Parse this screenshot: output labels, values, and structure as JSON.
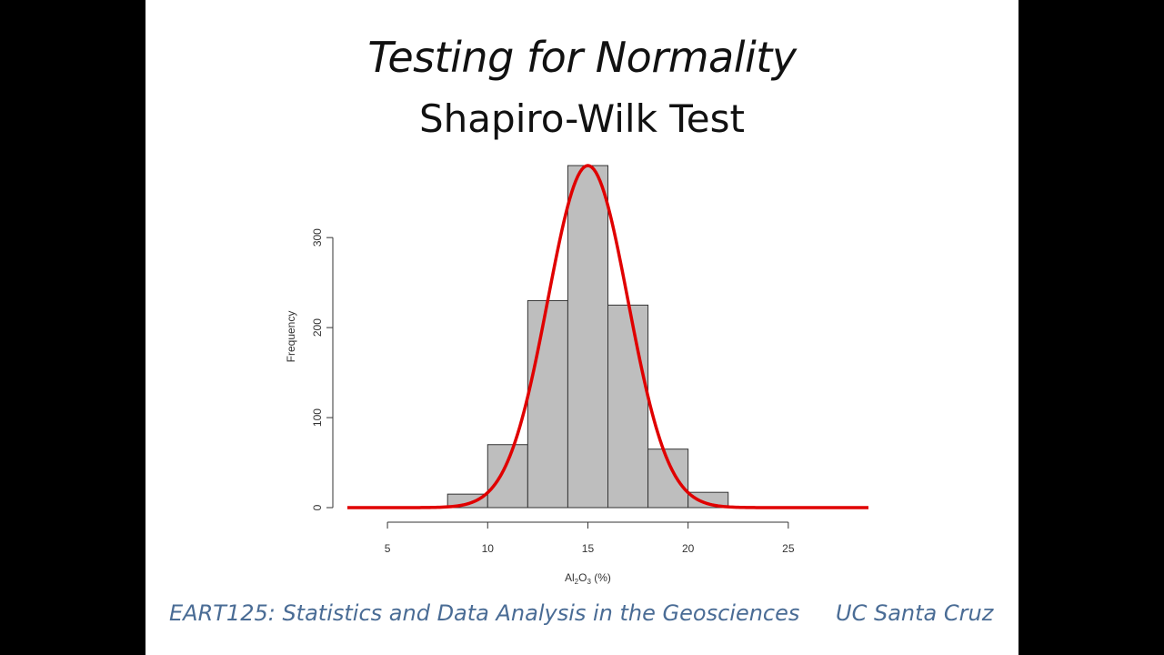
{
  "slide": {
    "title": "Testing for Normality",
    "subtitle": "Shapiro-Wilk Test",
    "footer_left": "EART125: Statistics and Data Analysis in the Geosciences",
    "footer_right": "UC Santa Cruz",
    "footer_color": "#4a6c95"
  },
  "chart_data": {
    "type": "bar",
    "bins": [
      {
        "x0": 8,
        "x1": 10,
        "value": 15
      },
      {
        "x0": 10,
        "x1": 12,
        "value": 70
      },
      {
        "x0": 12,
        "x1": 14,
        "value": 230
      },
      {
        "x0": 14,
        "x1": 16,
        "value": 380
      },
      {
        "x0": 16,
        "x1": 18,
        "value": 225
      },
      {
        "x0": 18,
        "x1": 20,
        "value": 65
      },
      {
        "x0": 20,
        "x1": 22,
        "value": 17
      }
    ],
    "bar_color": "#bebebe",
    "bar_edge_color": "#333333",
    "curve": {
      "type": "normal-density",
      "mean": 15,
      "sd": 2,
      "peak": 380,
      "color": "#e00000",
      "x_range": [
        3,
        29
      ]
    },
    "xlabel": "Al",
    "xlabel_sub1": "2",
    "xlabel_mid": "O",
    "xlabel_sub2": "3",
    "xlabel_unit": " (%)",
    "ylabel": "Frequency",
    "xlim": [
      3,
      29
    ],
    "ylim": [
      0,
      380
    ],
    "x_ticks": [
      5,
      10,
      15,
      20,
      25
    ],
    "y_ticks": [
      0,
      100,
      200,
      300
    ],
    "grid": false
  }
}
